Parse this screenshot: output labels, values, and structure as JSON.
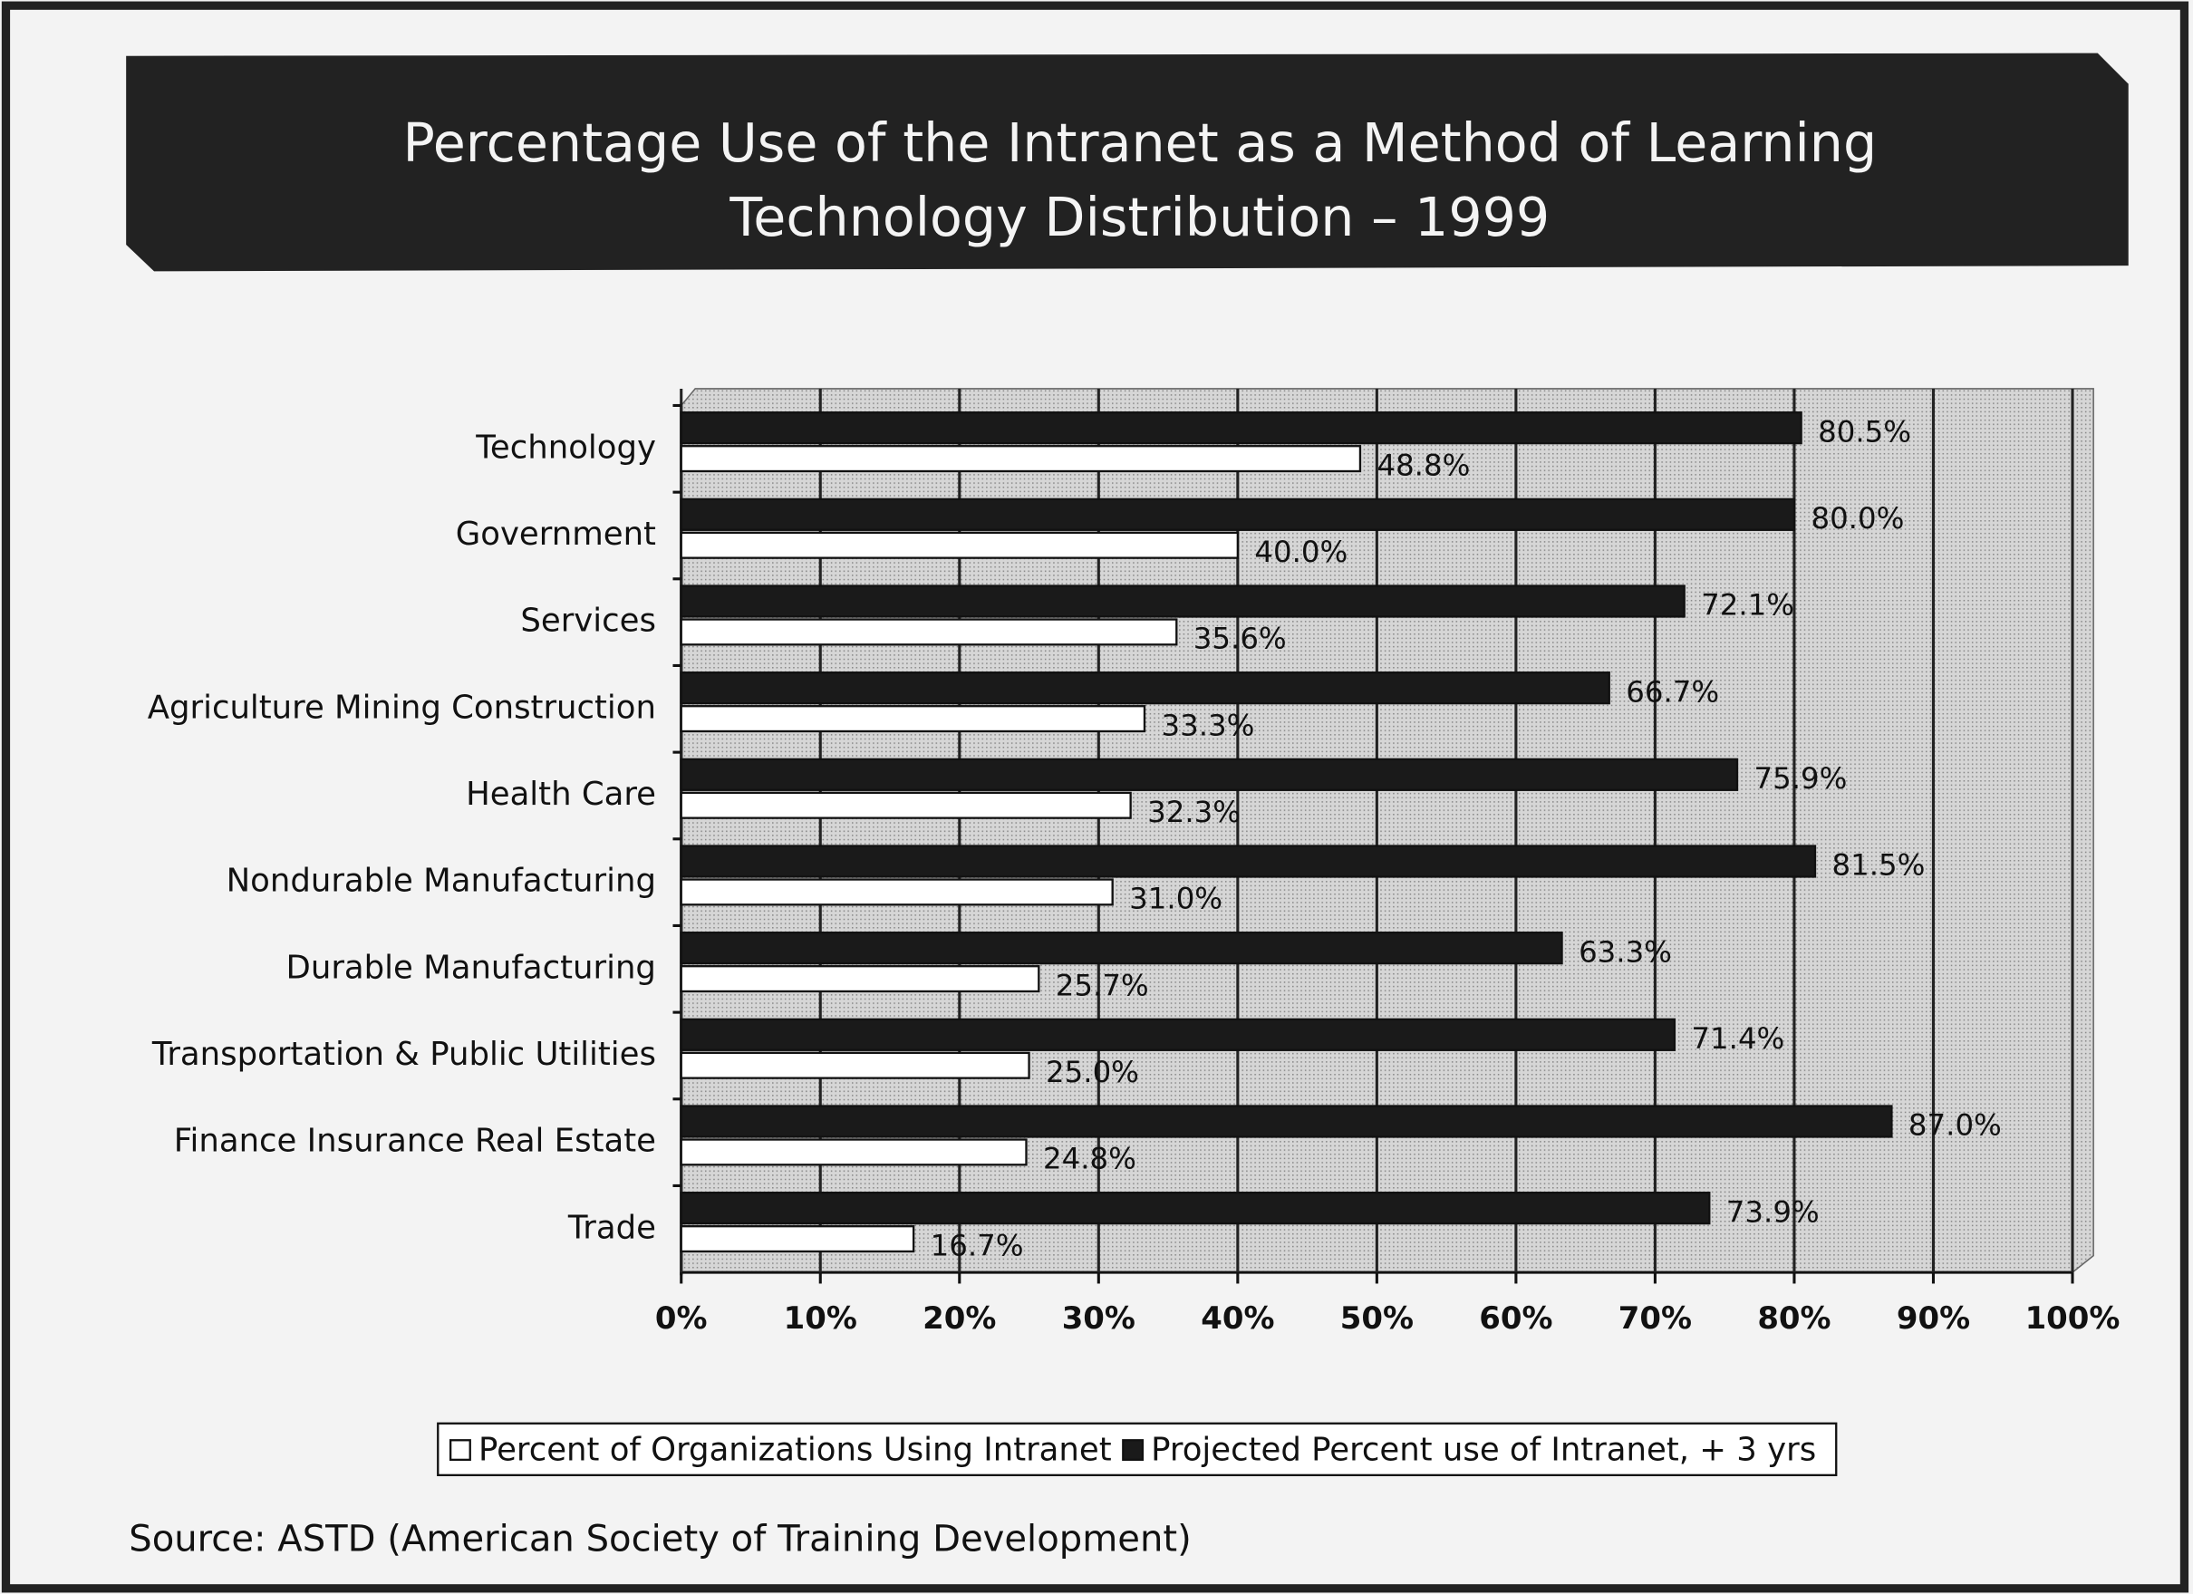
{
  "chart_data": {
    "type": "hbar",
    "title": [
      "Percentage Use of the Intranet as a Method of Learning",
      "Technology Distribution – 1999"
    ],
    "categories": [
      "Technology",
      "Government",
      "Services",
      "Agriculture Mining Construction",
      "Health Care",
      "Nondurable Manufacturing",
      "Durable Manufacturing",
      "Transportation & Public Utilities",
      "Finance Insurance Real Estate",
      "Trade"
    ],
    "series": [
      {
        "name": "Percent of Organizations Using Intranet",
        "color": "#ffffff",
        "values": [
          48.8,
          40.0,
          35.6,
          33.3,
          32.3,
          31.0,
          25.7,
          25.0,
          24.8,
          16.7
        ],
        "value_labels": [
          "48.8%",
          "40.0%",
          "35.6%",
          "33.3%",
          "32.3%",
          "31.0%",
          "25.7%",
          "25.0%",
          "24.8%",
          "16.7%"
        ]
      },
      {
        "name": "Projected Percent use of Intranet, + 3 yrs",
        "color": "#1a1a1a",
        "values": [
          80.5,
          80.0,
          72.1,
          66.7,
          75.9,
          81.5,
          63.3,
          71.4,
          87.0,
          73.9
        ],
        "value_labels": [
          "80.5%",
          "80.0%",
          "72.1%",
          "66.7%",
          "75.9%",
          "81.5%",
          "63.3%",
          "71.4%",
          "87.0%",
          "73.9%"
        ]
      }
    ],
    "xlim": [
      0,
      100
    ],
    "xticks": [
      {
        "value": 0,
        "label": "0%"
      },
      {
        "value": 10,
        "label": "10%"
      },
      {
        "value": 20,
        "label": "20%"
      },
      {
        "value": 30,
        "label": "30%"
      },
      {
        "value": 40,
        "label": "40%"
      },
      {
        "value": 50,
        "label": "50%"
      },
      {
        "value": 60,
        "label": "60%"
      },
      {
        "value": 70,
        "label": "70%"
      },
      {
        "value": 80,
        "label": "80%"
      },
      {
        "value": 90,
        "label": "90%"
      },
      {
        "value": 100,
        "label": "100%"
      }
    ],
    "grid": true,
    "legend": "bottom",
    "source": "Source: ASTD (American Society of Training Development)"
  }
}
